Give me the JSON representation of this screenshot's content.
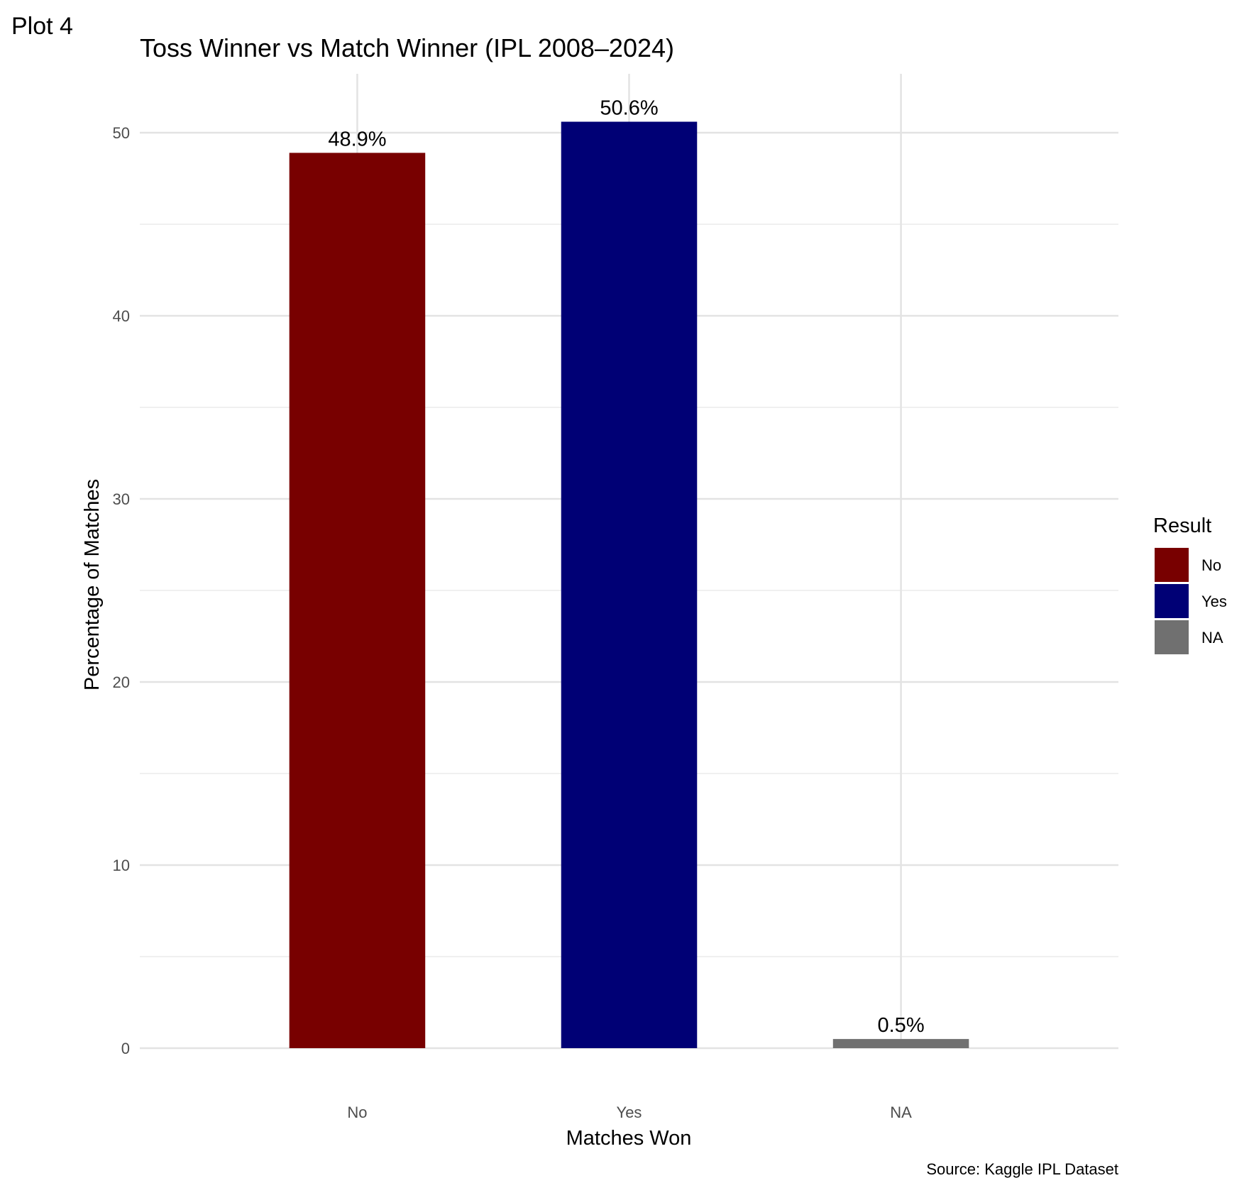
{
  "tag": "Plot 4",
  "chart_data": {
    "type": "bar",
    "title": "Toss Winner vs Match Winner (IPL 2008–2024)",
    "xlabel": "Matches Won",
    "ylabel": "Percentage of Matches",
    "caption": "Source: Kaggle IPL Dataset",
    "categories": [
      "No",
      "Yes",
      "NA"
    ],
    "values": [
      48.9,
      50.6,
      0.5
    ],
    "value_labels": [
      "48.9%",
      "50.6%",
      "0.5%"
    ],
    "colors": [
      "#780000",
      "#000075",
      "#707070"
    ],
    "ylim": [
      0,
      53.2
    ],
    "yticks": [
      0,
      10,
      20,
      30,
      40,
      50
    ],
    "grid": true,
    "legend": {
      "title": "Result",
      "position": "right",
      "items": [
        {
          "label": "No",
          "color": "#780000"
        },
        {
          "label": "Yes",
          "color": "#000075"
        },
        {
          "label": "NA",
          "color": "#707070"
        }
      ]
    }
  }
}
